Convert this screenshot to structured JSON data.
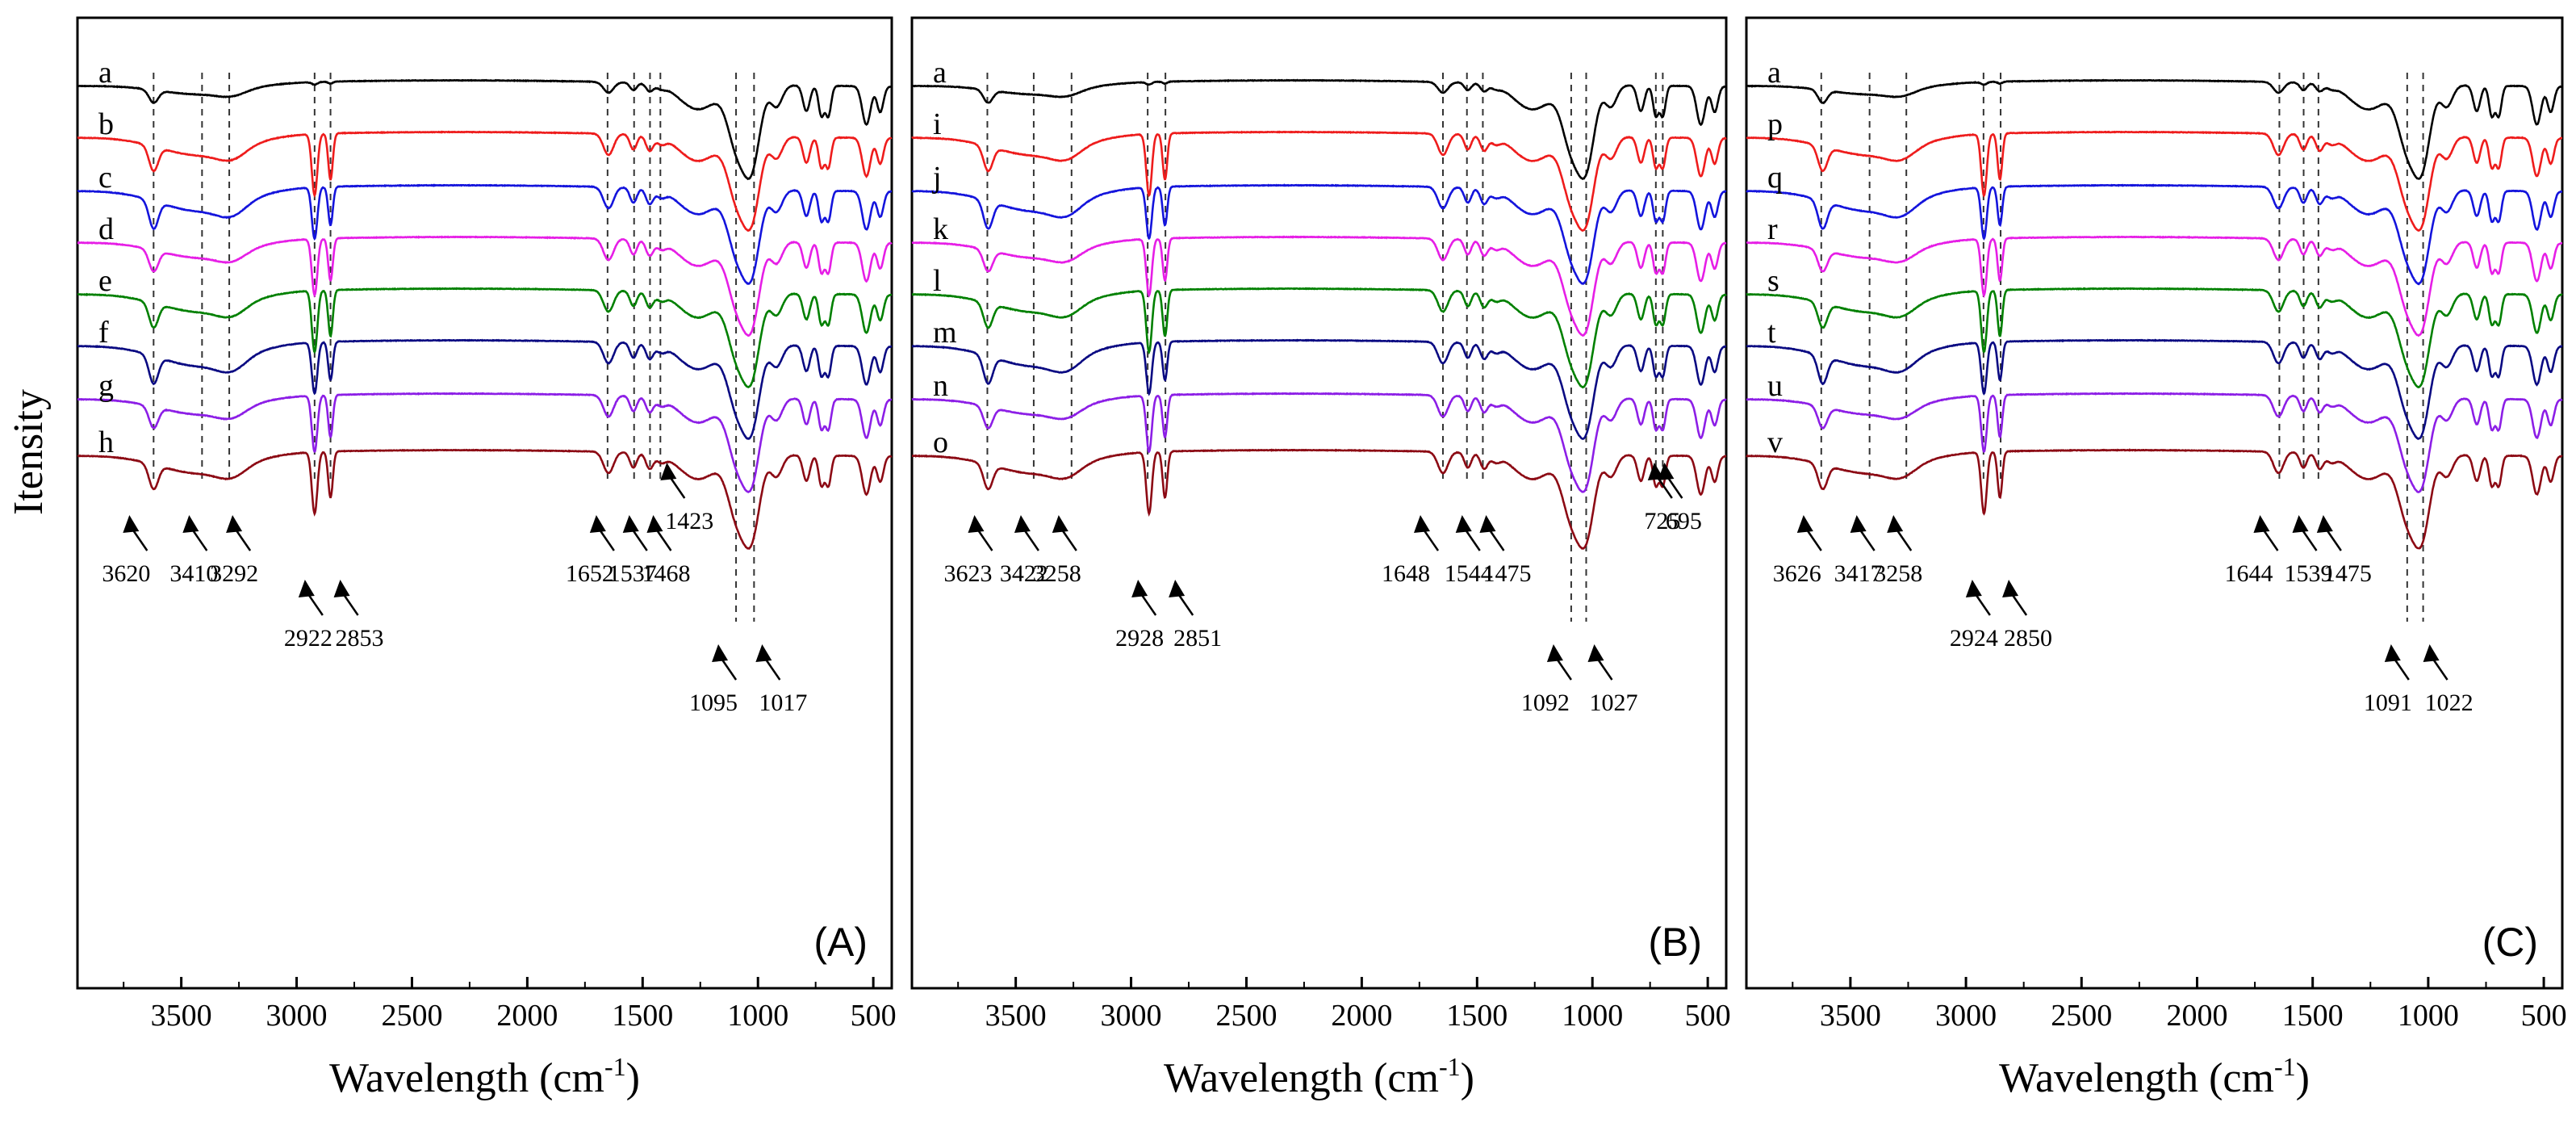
{
  "chart_data": {
    "type": "line",
    "ylabel": "Itensity",
    "xlabel": "Wavelength (cm",
    "xlabel_sup": "-1",
    "xlabel_close": ")",
    "xlim": [
      3950,
      420
    ],
    "x_ticks": [
      3500,
      3000,
      2500,
      2000,
      1500,
      1000,
      500
    ],
    "x_tick_labels": [
      "3500",
      "3000",
      "2500",
      "2000",
      "1500",
      "1000",
      "500"
    ],
    "colors": {
      "black": "#000000",
      "red": "#ee1c1c",
      "blue": "#1414dc",
      "magenta": "#e61ee6",
      "green": "#008000",
      "navy": "#0a0a82",
      "violet": "#8c1ee6",
      "maroon": "#8c0a14"
    },
    "panels": [
      {
        "panel_label": "(A)",
        "curves": [
          {
            "label": "a",
            "color": "black"
          },
          {
            "label": "b",
            "color": "red"
          },
          {
            "label": "c",
            "color": "blue"
          },
          {
            "label": "d",
            "color": "magenta"
          },
          {
            "label": "e",
            "color": "green"
          },
          {
            "label": "f",
            "color": "navy"
          },
          {
            "label": "g",
            "color": "violet"
          },
          {
            "label": "h",
            "color": "maroon"
          }
        ],
        "dashed_lines": [
          3620,
          3410,
          3292,
          2922,
          2853,
          1652,
          1537,
          1468,
          1423,
          1095,
          1017
        ],
        "annotations": [
          {
            "text": "3620",
            "x": 3620,
            "level": 1
          },
          {
            "text": "3410",
            "x": 3410,
            "level": 1
          },
          {
            "text": "3292",
            "x": 3292,
            "level": 1
          },
          {
            "text": "2922",
            "x": 2922,
            "level": 2
          },
          {
            "text": "2853",
            "x": 2853,
            "level": 2
          },
          {
            "text": "1652",
            "x": 1652,
            "level": 1
          },
          {
            "text": "1537",
            "x": 1537,
            "level": 1
          },
          {
            "text": "1468",
            "x": 1468,
            "level": 1
          },
          {
            "text": "1423",
            "x": 1423,
            "level": 0
          },
          {
            "text": "1095",
            "x": 1095,
            "level": 3
          },
          {
            "text": "1017",
            "x": 1017,
            "level": 3
          }
        ]
      },
      {
        "panel_label": "(B)",
        "curves": [
          {
            "label": "a",
            "color": "black"
          },
          {
            "label": "i",
            "color": "red"
          },
          {
            "label": "j",
            "color": "blue"
          },
          {
            "label": "k",
            "color": "magenta"
          },
          {
            "label": "l",
            "color": "green"
          },
          {
            "label": "m",
            "color": "navy"
          },
          {
            "label": "n",
            "color": "violet"
          },
          {
            "label": "o",
            "color": "maroon"
          }
        ],
        "dashed_lines": [
          3623,
          3422,
          3258,
          2928,
          2851,
          1648,
          1544,
          1475,
          1092,
          1027,
          725,
          695
        ],
        "annotations": [
          {
            "text": "3623",
            "x": 3623,
            "level": 1
          },
          {
            "text": "3422",
            "x": 3422,
            "level": 1
          },
          {
            "text": "3258",
            "x": 3258,
            "level": 1
          },
          {
            "text": "2928",
            "x": 2928,
            "level": 2
          },
          {
            "text": "2851",
            "x": 2851,
            "level": 2
          },
          {
            "text": "1648",
            "x": 1648,
            "level": 1
          },
          {
            "text": "1544",
            "x": 1544,
            "level": 1
          },
          {
            "text": "1475",
            "x": 1475,
            "level": 1
          },
          {
            "text": "725",
            "x": 725,
            "level": 0
          },
          {
            "text": "695",
            "x": 695,
            "level": 0
          },
          {
            "text": "1092",
            "x": 1092,
            "level": 3
          },
          {
            "text": "1027",
            "x": 1027,
            "level": 3
          }
        ]
      },
      {
        "panel_label": "(C)",
        "curves": [
          {
            "label": "a",
            "color": "black"
          },
          {
            "label": "p",
            "color": "red"
          },
          {
            "label": "q",
            "color": "blue"
          },
          {
            "label": "r",
            "color": "magenta"
          },
          {
            "label": "s",
            "color": "green"
          },
          {
            "label": "t",
            "color": "navy"
          },
          {
            "label": "u",
            "color": "violet"
          },
          {
            "label": "v",
            "color": "maroon"
          }
        ],
        "dashed_lines": [
          3626,
          3417,
          3258,
          2924,
          2850,
          1644,
          1539,
          1475,
          1091,
          1022
        ],
        "annotations": [
          {
            "text": "3626",
            "x": 3626,
            "level": 1
          },
          {
            "text": "3417",
            "x": 3417,
            "level": 1
          },
          {
            "text": "3258",
            "x": 3258,
            "level": 1
          },
          {
            "text": "2924",
            "x": 2924,
            "level": 2
          },
          {
            "text": "2850",
            "x": 2850,
            "level": 2
          },
          {
            "text": "1644",
            "x": 1644,
            "level": 1
          },
          {
            "text": "1539",
            "x": 1539,
            "level": 1
          },
          {
            "text": "1475",
            "x": 1475,
            "level": 1
          },
          {
            "text": "1091",
            "x": 1091,
            "level": 3
          },
          {
            "text": "1022",
            "x": 1022,
            "level": 3
          }
        ]
      }
    ]
  }
}
